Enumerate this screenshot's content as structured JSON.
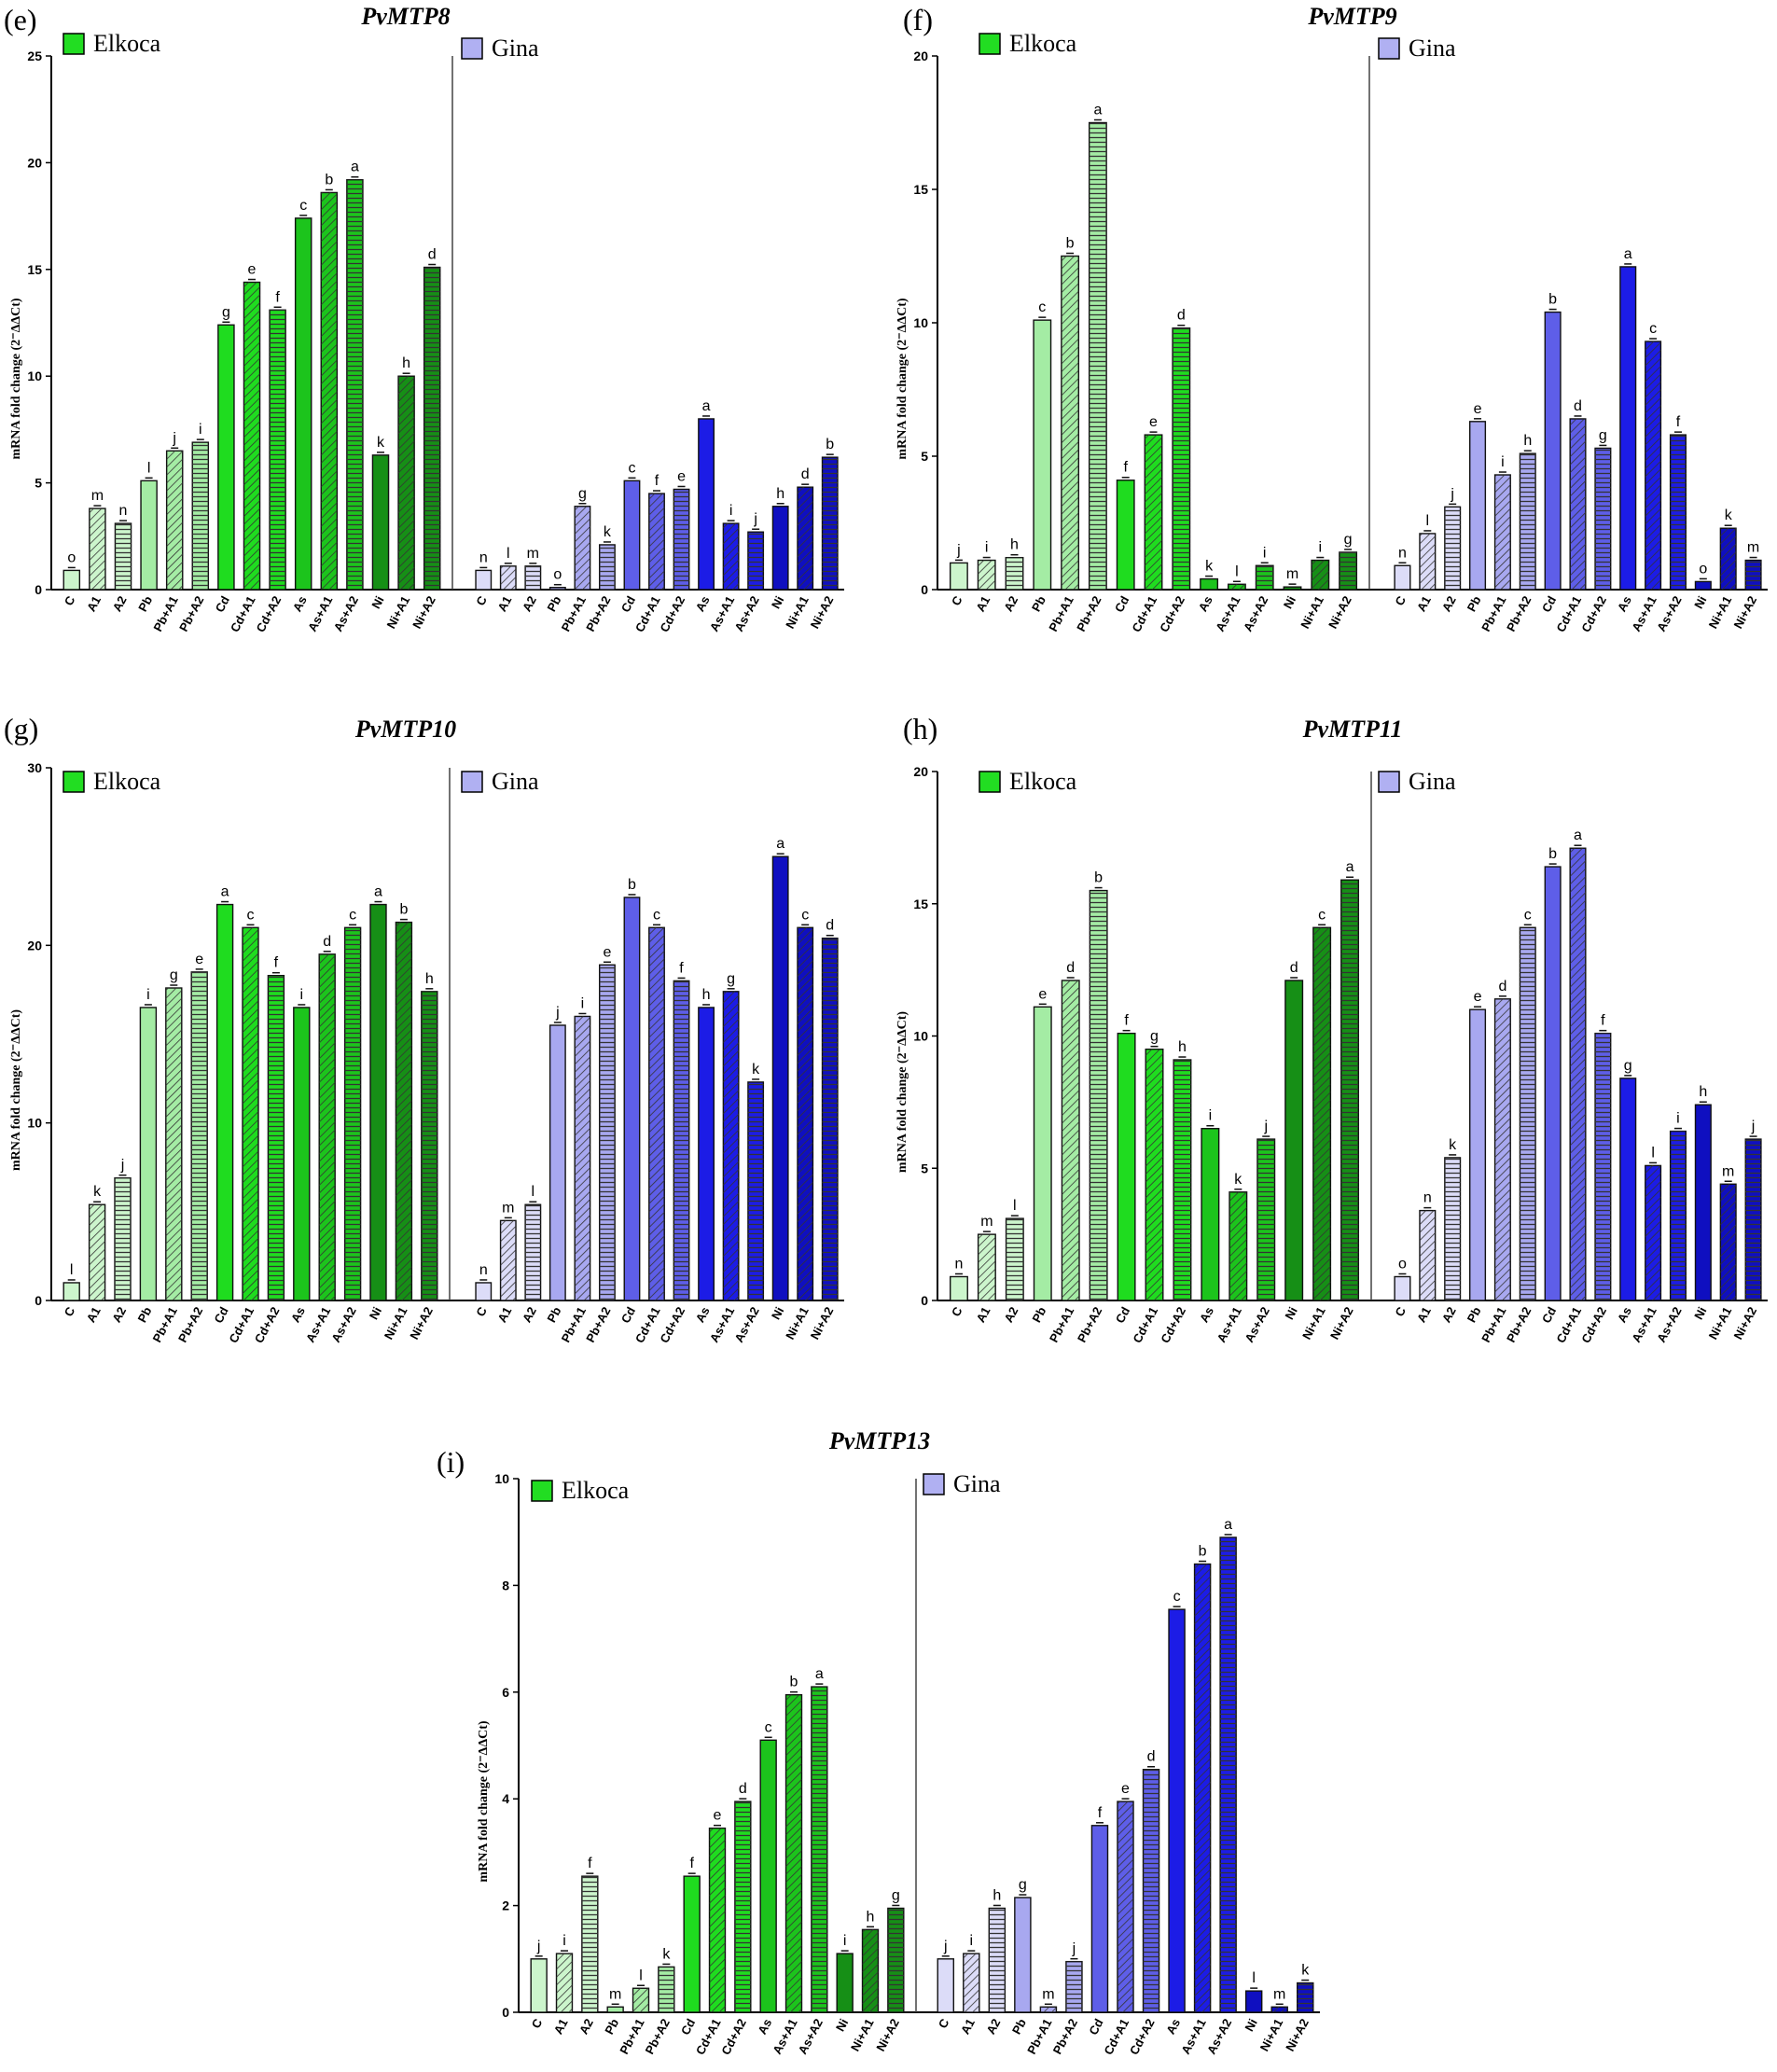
{
  "colors": {
    "elkoca": [
      "#ccf5cc",
      "#ccf5cc",
      "#ccf5cc",
      "#a4eca4",
      "#a4eca4",
      "#a4eca4",
      "#1fdc1f",
      "#1fdc1f",
      "#1fdc1f",
      "#1cc41c",
      "#1cc41c",
      "#1cc41c",
      "#168f16",
      "#168f16",
      "#168f16"
    ],
    "gina": [
      "#dcdcf8",
      "#dcdcf8",
      "#dcdcf8",
      "#a8a8f0",
      "#a8a8f0",
      "#a8a8f0",
      "#5e5ee8",
      "#5e5ee8",
      "#5e5ee8",
      "#1c1ce6",
      "#1c1ce6",
      "#1c1ce6",
      "#0f0fc0",
      "#0f0fc0",
      "#0f0fc0"
    ],
    "elkoca_legend": "#22dd22",
    "gina_legend": "#b0b0f2"
  },
  "patterns": [
    "none",
    "diag",
    "horiz",
    "none",
    "diag",
    "horiz",
    "none",
    "diag",
    "horiz",
    "none",
    "diag",
    "horiz",
    "none",
    "diag",
    "horiz"
  ],
  "chart_data": [
    {
      "panel": "(e)",
      "title": "PvMTP8",
      "type": "bar",
      "ylabel": "mRNA fold change (2⁻ΔΔCt)",
      "ylim": [
        0,
        25
      ],
      "yticks": [
        "0",
        "5",
        "10",
        "15",
        "20",
        "25"
      ],
      "legend": [
        "Elkoca",
        "Gina"
      ],
      "categories": [
        "C",
        "A1",
        "A2",
        "Pb",
        "Pb+A1",
        "Pb+A2",
        "Cd",
        "Cd+A1",
        "Cd+A2",
        "As",
        "As+A1",
        "As+A2",
        "Ni",
        "Ni+A1",
        "Ni+A2"
      ],
      "series": [
        {
          "name": "Elkoca",
          "values": [
            0.9,
            3.8,
            3.1,
            5.1,
            6.5,
            6.9,
            12.4,
            14.4,
            13.1,
            17.4,
            18.6,
            19.2,
            6.3,
            10.0,
            15.1
          ],
          "letters": [
            "o",
            "m",
            "n",
            "l",
            "j",
            "i",
            "g",
            "e",
            "f",
            "c",
            "b",
            "a",
            "k",
            "h",
            "d"
          ]
        },
        {
          "name": "Gina",
          "values": [
            0.9,
            1.1,
            1.1,
            0.1,
            3.9,
            2.1,
            5.1,
            4.5,
            4.7,
            8.0,
            3.1,
            2.7,
            3.9,
            4.8,
            6.2
          ],
          "letters": [
            "n",
            "l",
            "m",
            "o",
            "g",
            "k",
            "c",
            "f",
            "e",
            "a",
            "i",
            "j",
            "h",
            "d",
            "b"
          ]
        }
      ]
    },
    {
      "panel": "(f)",
      "title": "PvMTP9",
      "type": "bar",
      "ylabel": "mRNA fold change (2⁻ΔΔCt)",
      "ylim": [
        0,
        20
      ],
      "yticks": [
        "0",
        "5",
        "10",
        "15",
        "20"
      ],
      "legend": [
        "Elkoca",
        "Gina"
      ],
      "categories": [
        "C",
        "A1",
        "A2",
        "Pb",
        "Pb+A1",
        "Pb+A2",
        "Cd",
        "Cd+A1",
        "Cd+A2",
        "As",
        "As+A1",
        "As+A2",
        "Ni",
        "Ni+A1",
        "Ni+A2"
      ],
      "series": [
        {
          "name": "Elkoca",
          "values": [
            1.0,
            1.1,
            1.2,
            10.1,
            12.5,
            17.5,
            4.1,
            5.8,
            9.8,
            0.4,
            0.2,
            0.9,
            0.1,
            1.1,
            1.4
          ],
          "letters": [
            "j",
            "i",
            "h",
            "c",
            "b",
            "a",
            "f",
            "e",
            "d",
            "k",
            "l",
            "i",
            "m",
            "i",
            "g"
          ]
        },
        {
          "name": "Gina",
          "values": [
            0.9,
            2.1,
            3.1,
            6.3,
            4.3,
            5.1,
            10.4,
            6.4,
            5.3,
            12.1,
            9.3,
            5.8,
            0.3,
            2.3,
            1.1
          ],
          "letters": [
            "n",
            "l",
            "j",
            "e",
            "i",
            "h",
            "b",
            "d",
            "g",
            "a",
            "c",
            "f",
            "o",
            "k",
            "m"
          ]
        }
      ]
    },
    {
      "panel": "(g)",
      "title": "PvMTP10",
      "type": "bar",
      "ylabel": "mRNA fold change (2⁻ΔΔCt)",
      "ylim": [
        0,
        30
      ],
      "yticks": [
        "0",
        "10",
        "20",
        "30"
      ],
      "legend": [
        "Elkoca",
        "Gina"
      ],
      "categories": [
        "C",
        "A1",
        "A2",
        "Pb",
        "Pb+A1",
        "Pb+A2",
        "Cd",
        "Cd+A1",
        "Cd+A2",
        "As",
        "As+A1",
        "As+A2",
        "Ni",
        "Ni+A1",
        "Ni+A2"
      ],
      "series": [
        {
          "name": "Elkoca",
          "values": [
            1.0,
            5.4,
            6.9,
            16.5,
            17.6,
            18.5,
            22.3,
            21.0,
            18.3,
            16.5,
            19.5,
            21.0,
            22.3,
            21.3,
            17.4
          ],
          "letters": [
            "l",
            "k",
            "j",
            "i",
            "g",
            "e",
            "a",
            "c",
            "f",
            "i",
            "d",
            "c",
            "a",
            "b",
            "h"
          ]
        },
        {
          "name": "Gina",
          "values": [
            1.0,
            4.5,
            5.4,
            15.5,
            16.0,
            18.9,
            22.7,
            21.0,
            18.0,
            16.5,
            17.4,
            12.3,
            25.0,
            21.0,
            20.4
          ],
          "letters": [
            "n",
            "m",
            "l",
            "j",
            "i",
            "e",
            "b",
            "c",
            "f",
            "h",
            "g",
            "k",
            "a",
            "c",
            "d"
          ]
        }
      ]
    },
    {
      "panel": "(h)",
      "title": "PvMTP11",
      "type": "bar",
      "ylabel": "mRNA fold change (2⁻ΔΔCt)",
      "ylim": [
        0,
        20
      ],
      "yticks": [
        "0",
        "5",
        "10",
        "15",
        "20"
      ],
      "legend": [
        "Elkoca",
        "Gina"
      ],
      "categories": [
        "C",
        "A1",
        "A2",
        "Pb",
        "Pb+A1",
        "Pb+A2",
        "Cd",
        "Cd+A1",
        "Cd+A2",
        "As",
        "As+A1",
        "As+A2",
        "Ni",
        "Ni+A1",
        "Ni+A2"
      ],
      "series": [
        {
          "name": "Elkoca",
          "values": [
            0.9,
            2.5,
            3.1,
            11.1,
            12.1,
            15.5,
            10.1,
            9.5,
            9.1,
            6.5,
            4.1,
            6.1,
            12.1,
            14.1,
            15.9
          ],
          "letters": [
            "n",
            "m",
            "l",
            "e",
            "d",
            "b",
            "f",
            "g",
            "h",
            "i",
            "k",
            "j",
            "d",
            "c",
            "a"
          ]
        },
        {
          "name": "Gina",
          "values": [
            0.9,
            3.4,
            5.4,
            11.0,
            11.4,
            14.1,
            16.4,
            17.1,
            10.1,
            8.4,
            5.1,
            6.4,
            7.4,
            4.4,
            6.1
          ],
          "letters": [
            "o",
            "n",
            "k",
            "e",
            "d",
            "c",
            "b",
            "a",
            "f",
            "g",
            "l",
            "i",
            "h",
            "m",
            "j"
          ]
        }
      ]
    },
    {
      "panel": "(i)",
      "title": "PvMTP13",
      "type": "bar",
      "ylabel": "mRNA fold change (2⁻ΔΔCt)",
      "ylim": [
        0,
        10
      ],
      "yticks": [
        "0",
        "2",
        "4",
        "6",
        "8",
        "10"
      ],
      "legend": [
        "Elkoca",
        "Gina"
      ],
      "categories": [
        "C",
        "A1",
        "A2",
        "Pb",
        "Pb+A1",
        "Pb+A2",
        "Cd",
        "Cd+A1",
        "Cd+A2",
        "As",
        "As+A1",
        "As+A2",
        "Ni",
        "Ni+A1",
        "Ni+A2"
      ],
      "series": [
        {
          "name": "Elkoca",
          "values": [
            1.0,
            1.1,
            2.55,
            0.1,
            0.45,
            0.85,
            2.55,
            3.45,
            3.95,
            5.1,
            5.95,
            6.1,
            1.1,
            1.55,
            1.95
          ],
          "letters": [
            "j",
            "i",
            "f",
            "m",
            "l",
            "k",
            "f",
            "e",
            "d",
            "c",
            "b",
            "a",
            "i",
            "h",
            "g"
          ]
        },
        {
          "name": "Gina",
          "values": [
            1.0,
            1.1,
            1.95,
            2.15,
            0.1,
            0.95,
            3.5,
            3.95,
            4.55,
            7.55,
            8.4,
            8.9,
            0.4,
            0.1,
            0.55
          ],
          "letters": [
            "j",
            "i",
            "h",
            "g",
            "m",
            "j",
            "f",
            "e",
            "d",
            "c",
            "b",
            "a",
            "l",
            "m",
            "k"
          ]
        }
      ]
    }
  ]
}
